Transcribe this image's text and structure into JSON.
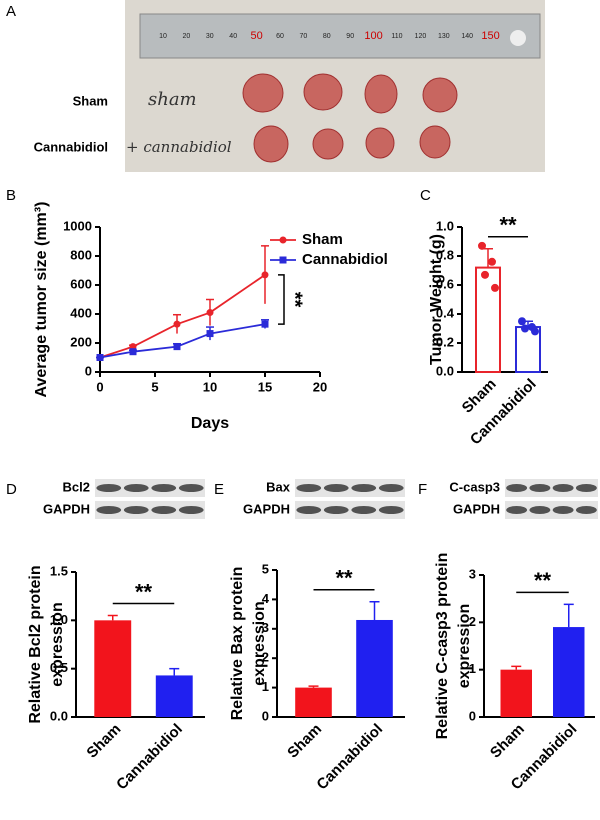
{
  "panel_letters": [
    "A",
    "B",
    "C",
    "D",
    "E",
    "F"
  ],
  "photo": {
    "row_labels": [
      "Sham",
      "Cannabidiol"
    ],
    "handwritten": [
      "sham",
      "+ cannabidiol"
    ],
    "ruler_labels": [
      "10",
      "20",
      "30",
      "40",
      "50",
      "60",
      "70",
      "80",
      "90",
      "100",
      "110",
      "120",
      "130",
      "140",
      "150"
    ]
  },
  "chart_data": [
    {
      "type": "line",
      "ylabel": [
        "Average tumor size (mm³)"
      ],
      "xlabel": "Days",
      "annotation": "**",
      "x": [
        0,
        3,
        7,
        10,
        15
      ],
      "xlim": [
        0,
        20
      ],
      "xticks": [
        0,
        5,
        10,
        15,
        20
      ],
      "ylim": [
        0,
        1000
      ],
      "yticks": [
        0,
        200,
        400,
        600,
        800,
        1000
      ],
      "series": [
        {
          "name": "Sham",
          "color": "#e8242b",
          "values": [
            100,
            175,
            330,
            410,
            670
          ],
          "errors": [
            0,
            10,
            65,
            90,
            200
          ]
        },
        {
          "name": "Cannabidiol",
          "color": "#2b2bd8",
          "values": [
            100,
            140,
            175,
            265,
            330
          ],
          "errors": [
            0,
            10,
            20,
            45,
            30
          ]
        }
      ]
    },
    {
      "type": "bar",
      "bar_style": "outline",
      "ylabel": [
        "Tumor  Weight (g)"
      ],
      "annotation": "**",
      "categories": [
        "Sham",
        "Cannabidiol"
      ],
      "colors": [
        "#e8242b",
        "#2b2bd8"
      ],
      "values": [
        0.72,
        0.31
      ],
      "errors": [
        0.13,
        0.04
      ],
      "points": [
        [
          0.87,
          0.76,
          0.67,
          0.58
        ],
        [
          0.35,
          0.31,
          0.3,
          0.28
        ]
      ],
      "ylim": [
        0,
        1
      ],
      "yticks": [
        {
          "value": 0,
          "label": "0.0"
        },
        0.2,
        0.4,
        0.6,
        0.8,
        {
          "value": 1,
          "label": "1.0"
        }
      ]
    },
    {
      "type": "bar",
      "bar_style": "filled",
      "blot_labels": [
        "Bcl2",
        "GAPDH"
      ],
      "ylabel": [
        "Relative Bcl2 protein",
        "expression"
      ],
      "annotation": "**",
      "categories": [
        "Sham",
        "Cannabidiol"
      ],
      "colors": [
        "#f2141c",
        "#2020f0"
      ],
      "values": [
        1.0,
        0.43
      ],
      "errors": [
        0.05,
        0.07
      ],
      "ylim": [
        0,
        1.5
      ],
      "yticks": [
        {
          "value": 0,
          "label": "0.0"
        },
        0.5,
        {
          "value": 1,
          "label": "1.0"
        },
        1.5
      ]
    },
    {
      "type": "bar",
      "bar_style": "filled",
      "blot_labels": [
        "Bax",
        "GAPDH"
      ],
      "ylabel": [
        "Relative Bax protein",
        "expression"
      ],
      "annotation": "**",
      "categories": [
        "Sham",
        "Cannabidiol"
      ],
      "colors": [
        "#f2141c",
        "#2020f0"
      ],
      "values": [
        1.0,
        3.3
      ],
      "errors": [
        0.05,
        0.62
      ],
      "ylim": [
        0,
        5
      ],
      "yticks": [
        0,
        1,
        2,
        3,
        4,
        5
      ]
    },
    {
      "type": "bar",
      "bar_style": "filled",
      "blot_labels": [
        "C-casp3",
        "GAPDH"
      ],
      "ylabel": [
        "Relative C-casp3 protein",
        "expression"
      ],
      "annotation": "**",
      "categories": [
        "Sham",
        "Cannabidiol"
      ],
      "colors": [
        "#f2141c",
        "#2020f0"
      ],
      "values": [
        1.0,
        1.9
      ],
      "errors": [
        0.07,
        0.48
      ],
      "ylim": [
        0,
        3
      ],
      "yticks": [
        0,
        1,
        2,
        3
      ]
    }
  ]
}
